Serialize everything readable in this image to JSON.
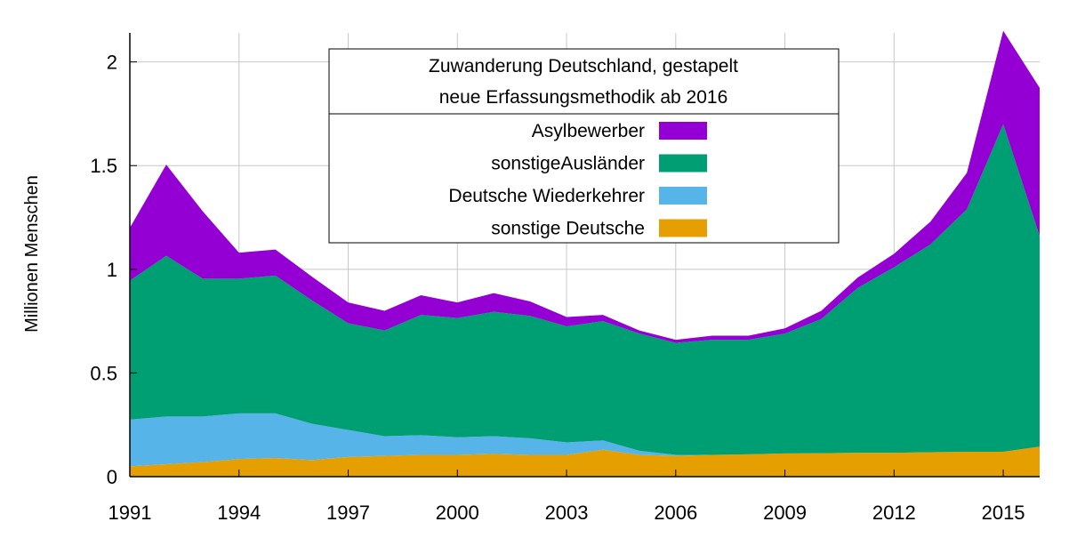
{
  "chart_data": {
    "type": "area",
    "stacked": true,
    "title_lines": [
      "Zuwanderung Deutschland, gestapelt",
      "neue Erfassungsmethodik ab 2016"
    ],
    "xlabel": "",
    "ylabel": "Millionen Menschen",
    "xlim": [
      1991,
      2016
    ],
    "ylim": [
      0,
      2.14
    ],
    "x_ticks": [
      1991,
      1994,
      1997,
      2000,
      2003,
      2006,
      2009,
      2012,
      2015
    ],
    "x_tick_labels": [
      "1991",
      "1994",
      "1997",
      "2000",
      "2003",
      "2006",
      "2009",
      "2012",
      "2015"
    ],
    "y_ticks": [
      0,
      0.5,
      1,
      1.5,
      2
    ],
    "y_tick_labels": [
      "0",
      "0.5",
      "1",
      "1.5",
      "2"
    ],
    "grid": true,
    "legend_position": "top-center",
    "x": [
      1991,
      1992,
      1993,
      1994,
      1995,
      1996,
      1997,
      1998,
      1999,
      2000,
      2001,
      2002,
      2003,
      2004,
      2005,
      2006,
      2007,
      2008,
      2009,
      2010,
      2011,
      2012,
      2013,
      2014,
      2015,
      2016
    ],
    "series": [
      {
        "name": "sonstige Deutsche",
        "color": "#e69f00",
        "values": [
          0.05,
          0.06,
          0.07,
          0.085,
          0.09,
          0.08,
          0.095,
          0.1,
          0.105,
          0.105,
          0.11,
          0.105,
          0.105,
          0.13,
          0.105,
          0.1,
          0.105,
          0.108,
          0.112,
          0.113,
          0.115,
          0.115,
          0.118,
          0.12,
          0.12,
          0.145
        ]
      },
      {
        "name": "Deutsche Wiederkehrer",
        "color": "#56b4e9",
        "values": [
          0.225,
          0.23,
          0.22,
          0.22,
          0.215,
          0.175,
          0.13,
          0.095,
          0.095,
          0.085,
          0.085,
          0.08,
          0.06,
          0.045,
          0.02,
          0.005,
          0,
          0,
          0,
          0,
          0,
          0,
          0,
          0,
          0,
          0
        ]
      },
      {
        "name": "sonstigeAusländer",
        "color": "#009e73",
        "values": [
          0.67,
          0.775,
          0.665,
          0.65,
          0.665,
          0.595,
          0.515,
          0.51,
          0.58,
          0.575,
          0.6,
          0.59,
          0.56,
          0.575,
          0.565,
          0.54,
          0.555,
          0.552,
          0.578,
          0.647,
          0.795,
          0.895,
          1.002,
          1.17,
          1.58,
          1.015
        ]
      },
      {
        "name": "Asylbewerber",
        "color": "#9400d3",
        "values": [
          0.255,
          0.44,
          0.325,
          0.125,
          0.125,
          0.115,
          0.1,
          0.095,
          0.095,
          0.075,
          0.09,
          0.07,
          0.045,
          0.03,
          0.015,
          0.015,
          0.02,
          0.02,
          0.025,
          0.04,
          0.05,
          0.065,
          0.11,
          0.175,
          0.45,
          0.715
        ]
      }
    ]
  }
}
